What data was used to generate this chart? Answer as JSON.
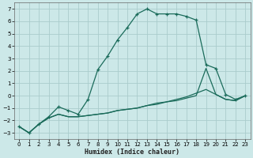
{
  "xlabel": "Humidex (Indice chaleur)",
  "background_color": "#cce8e8",
  "grid_color": "#aacccc",
  "line_color": "#1a6b5a",
  "xlim": [
    -0.5,
    23.5
  ],
  "ylim": [
    -3.5,
    7.5
  ],
  "xticks": [
    0,
    1,
    2,
    3,
    4,
    5,
    6,
    7,
    8,
    9,
    10,
    11,
    12,
    13,
    14,
    15,
    16,
    17,
    18,
    19,
    20,
    21,
    22,
    23
  ],
  "yticks": [
    -3,
    -2,
    -1,
    0,
    1,
    2,
    3,
    4,
    5,
    6,
    7
  ],
  "series1_x": [
    0,
    1,
    2,
    3,
    4,
    5,
    6,
    7,
    8,
    9,
    10,
    11,
    12,
    13,
    14,
    15,
    16,
    17,
    18,
    19,
    20,
    21,
    22,
    23
  ],
  "series1_y": [
    -2.5,
    -3.0,
    -2.3,
    -1.7,
    -0.9,
    -1.2,
    -1.5,
    -0.3,
    2.1,
    3.2,
    4.5,
    5.5,
    6.6,
    7.0,
    6.6,
    6.6,
    6.6,
    6.4,
    6.1,
    2.5,
    2.2,
    0.1,
    -0.3,
    0.0
  ],
  "series2_x": [
    0,
    1,
    2,
    3,
    4,
    5,
    6,
    7,
    8,
    9,
    10,
    11,
    12,
    13,
    14,
    15,
    16,
    17,
    18,
    19,
    20,
    21,
    22,
    23
  ],
  "series2_y": [
    -2.5,
    -3.0,
    -2.3,
    -1.8,
    -1.5,
    -1.7,
    -1.7,
    -1.6,
    -1.5,
    -1.4,
    -1.2,
    -1.1,
    -1.0,
    -0.8,
    -0.7,
    -0.5,
    -0.4,
    -0.2,
    0.0,
    2.2,
    0.1,
    -0.3,
    -0.4,
    0.0
  ],
  "series3_x": [
    0,
    1,
    2,
    3,
    4,
    5,
    6,
    7,
    8,
    9,
    10,
    11,
    12,
    13,
    14,
    15,
    16,
    17,
    18,
    19,
    20,
    21,
    22,
    23
  ],
  "series3_y": [
    -2.5,
    -3.0,
    -2.3,
    -1.8,
    -1.5,
    -1.7,
    -1.7,
    -1.6,
    -1.5,
    -1.4,
    -1.2,
    -1.1,
    -1.0,
    -0.8,
    -0.6,
    -0.5,
    -0.3,
    -0.1,
    0.2,
    0.5,
    0.1,
    -0.3,
    -0.4,
    0.0
  ]
}
